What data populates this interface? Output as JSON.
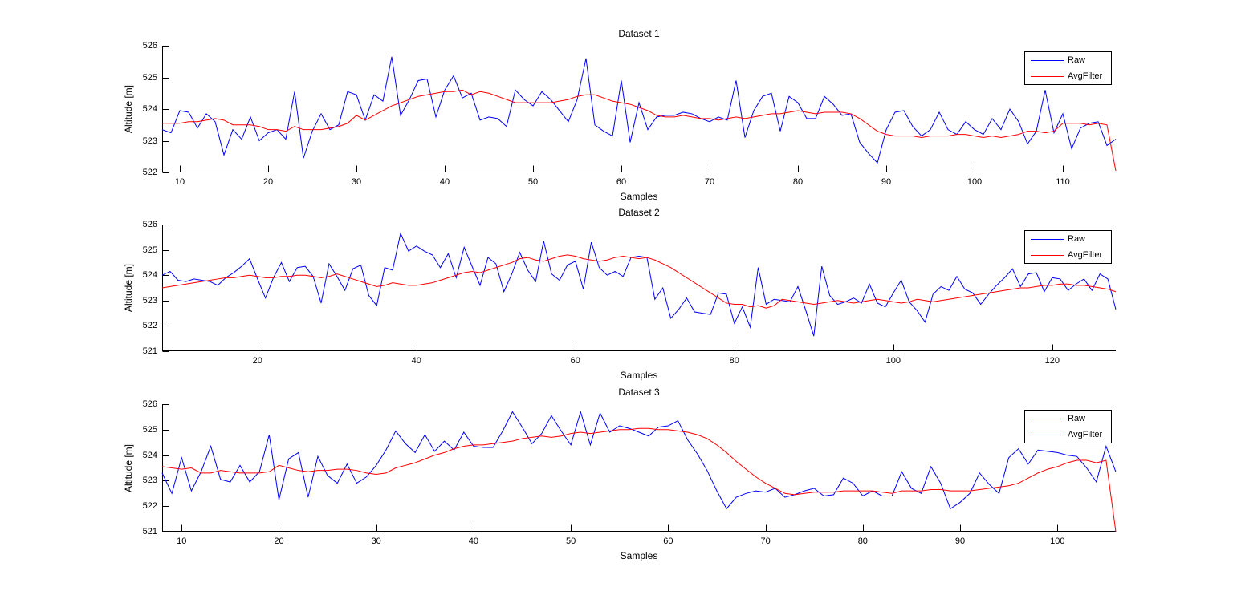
{
  "figure_background": "#ffffff",
  "axis_color": "#000000",
  "chart_data": [
    {
      "type": "line",
      "title": "Dataset 1",
      "xlabel": "Samples",
      "ylabel": "Altitude [m]",
      "xlim": [
        8,
        116
      ],
      "ylim": [
        522,
        526
      ],
      "xticks": [
        10,
        20,
        30,
        40,
        50,
        60,
        70,
        80,
        90,
        100,
        110
      ],
      "yticks": [
        522,
        523,
        524,
        525,
        526
      ],
      "grid": false,
      "legend_position": "top-right",
      "x_start": 8,
      "x_step": 1,
      "series": [
        {
          "name": "Raw",
          "color": "#0000FF",
          "values": [
            523.35,
            523.25,
            523.95,
            523.9,
            523.4,
            523.85,
            523.6,
            522.55,
            523.35,
            523.05,
            523.75,
            523.0,
            523.25,
            523.35,
            523.05,
            524.55,
            522.45,
            523.3,
            523.85,
            523.35,
            523.5,
            524.55,
            524.45,
            523.65,
            524.45,
            524.25,
            525.65,
            523.8,
            524.3,
            524.9,
            524.95,
            523.75,
            524.6,
            525.05,
            524.35,
            524.5,
            523.65,
            523.75,
            523.7,
            523.45,
            524.6,
            524.3,
            524.1,
            524.55,
            524.3,
            523.95,
            523.6,
            524.3,
            525.6,
            523.5,
            523.3,
            523.15,
            524.9,
            522.95,
            524.2,
            523.35,
            523.75,
            523.8,
            523.8,
            523.9,
            523.85,
            523.7,
            523.6,
            523.75,
            523.65,
            524.9,
            523.1,
            523.95,
            524.4,
            524.5,
            523.3,
            524.4,
            524.2,
            523.7,
            523.7,
            524.4,
            524.15,
            523.8,
            523.85,
            522.95,
            522.6,
            522.3,
            523.35,
            523.9,
            523.95,
            523.45,
            523.15,
            523.35,
            523.9,
            523.35,
            523.2,
            523.6,
            523.35,
            523.2,
            523.7,
            523.35,
            524.0,
            523.6,
            522.9,
            523.3,
            524.6,
            523.25,
            523.85,
            522.75,
            523.4,
            523.55,
            523.6,
            522.85,
            523.05
          ]
        },
        {
          "name": "AvgFilter",
          "color": "#FF0000",
          "values": [
            523.55,
            523.55,
            523.55,
            523.6,
            523.6,
            523.65,
            523.7,
            523.65,
            523.5,
            523.5,
            523.5,
            523.45,
            523.35,
            523.35,
            523.3,
            523.45,
            523.35,
            523.35,
            523.35,
            523.4,
            523.45,
            523.55,
            523.8,
            523.65,
            523.8,
            523.95,
            524.1,
            524.2,
            524.3,
            524.4,
            524.45,
            524.5,
            524.55,
            524.55,
            524.6,
            524.45,
            524.55,
            524.5,
            524.4,
            524.3,
            524.2,
            524.2,
            524.2,
            524.2,
            524.2,
            524.25,
            524.3,
            524.4,
            524.45,
            524.45,
            524.35,
            524.25,
            524.2,
            524.15,
            524.05,
            523.95,
            523.8,
            523.75,
            523.75,
            523.8,
            523.75,
            523.7,
            523.7,
            523.65,
            523.7,
            523.75,
            523.7,
            523.75,
            523.8,
            523.85,
            523.85,
            523.9,
            523.95,
            523.9,
            523.85,
            523.9,
            523.9,
            523.9,
            523.85,
            523.7,
            523.5,
            523.3,
            523.2,
            523.15,
            523.15,
            523.15,
            523.1,
            523.15,
            523.15,
            523.15,
            523.2,
            523.2,
            523.15,
            523.1,
            523.15,
            523.1,
            523.15,
            523.2,
            523.3,
            523.3,
            523.25,
            523.3,
            523.55,
            523.55,
            523.55,
            523.5,
            523.55,
            523.5,
            522.05
          ]
        }
      ]
    },
    {
      "type": "line",
      "title": "Dataset 2",
      "xlabel": "Samples",
      "ylabel": "Altitude [m]",
      "xlim": [
        8,
        128
      ],
      "ylim": [
        521,
        526
      ],
      "xticks": [
        20,
        40,
        60,
        80,
        100,
        120
      ],
      "yticks": [
        521,
        522,
        523,
        524,
        525,
        526
      ],
      "grid": false,
      "legend_position": "top-right",
      "x_start": 8,
      "x_step": 1,
      "series": [
        {
          "name": "Raw",
          "color": "#0000FF",
          "values": [
            524.0,
            524.15,
            523.8,
            523.75,
            523.85,
            523.8,
            523.75,
            523.6,
            523.9,
            524.1,
            524.35,
            524.65,
            523.85,
            523.1,
            523.9,
            524.5,
            523.75,
            524.3,
            524.35,
            523.95,
            522.9,
            524.45,
            523.95,
            523.4,
            524.25,
            524.4,
            523.2,
            522.8,
            524.3,
            524.2,
            525.65,
            524.95,
            525.15,
            524.95,
            524.8,
            524.3,
            524.85,
            523.9,
            525.1,
            524.35,
            523.6,
            524.7,
            524.45,
            523.35,
            524.05,
            524.9,
            524.2,
            523.75,
            525.35,
            524.05,
            523.8,
            524.4,
            524.55,
            523.45,
            525.3,
            524.3,
            524.0,
            524.15,
            523.95,
            524.7,
            524.75,
            524.7,
            523.05,
            523.5,
            522.3,
            522.65,
            523.1,
            522.55,
            522.5,
            522.45,
            523.3,
            523.25,
            522.1,
            522.75,
            521.95,
            524.3,
            522.85,
            523.05,
            523.0,
            522.95,
            523.55,
            522.6,
            521.6,
            524.35,
            523.2,
            522.85,
            522.95,
            523.1,
            522.9,
            523.65,
            522.9,
            522.75,
            523.3,
            523.8,
            522.95,
            522.6,
            522.15,
            523.25,
            523.55,
            523.4,
            523.95,
            523.45,
            523.3,
            522.85,
            523.25,
            523.6,
            523.9,
            524.25,
            523.55,
            524.05,
            524.1,
            523.35,
            523.9,
            523.85,
            523.4,
            523.65,
            523.85,
            523.4,
            524.05,
            523.85,
            522.65
          ]
        },
        {
          "name": "AvgFilter",
          "color": "#FF0000",
          "values": [
            523.5,
            523.55,
            523.6,
            523.65,
            523.7,
            523.75,
            523.8,
            523.85,
            523.9,
            523.9,
            523.95,
            524.0,
            523.95,
            523.9,
            523.9,
            523.95,
            523.95,
            524.0,
            524.0,
            523.95,
            523.9,
            523.95,
            524.05,
            523.95,
            523.85,
            523.75,
            523.65,
            523.55,
            523.6,
            523.7,
            523.65,
            523.6,
            523.6,
            523.65,
            523.7,
            523.8,
            523.9,
            524.0,
            524.1,
            524.15,
            524.1,
            524.2,
            524.3,
            524.4,
            524.5,
            524.65,
            524.7,
            524.6,
            524.55,
            524.65,
            524.75,
            524.8,
            524.75,
            524.65,
            524.6,
            524.55,
            524.6,
            524.7,
            524.75,
            524.7,
            524.65,
            524.7,
            524.6,
            524.45,
            524.3,
            524.1,
            523.9,
            523.7,
            523.5,
            523.3,
            523.1,
            522.9,
            522.85,
            522.85,
            522.75,
            522.8,
            522.7,
            522.8,
            523.05,
            523.0,
            522.95,
            522.9,
            522.85,
            522.9,
            522.95,
            523.0,
            522.95,
            522.9,
            522.95,
            523.0,
            523.05,
            523.0,
            522.95,
            522.9,
            522.95,
            523.05,
            523.0,
            522.95,
            523.0,
            523.05,
            523.1,
            523.15,
            523.2,
            523.25,
            523.3,
            523.35,
            523.4,
            523.45,
            523.5,
            523.5,
            523.55,
            523.6,
            523.6,
            523.65,
            523.65,
            523.6,
            523.6,
            523.55,
            523.5,
            523.45,
            523.35
          ]
        }
      ]
    },
    {
      "type": "line",
      "title": "Dataset 3",
      "xlabel": "Samples",
      "ylabel": "Altitude [m]",
      "xlim": [
        8,
        106
      ],
      "ylim": [
        521,
        526
      ],
      "xticks": [
        10,
        20,
        30,
        40,
        50,
        60,
        70,
        80,
        90,
        100
      ],
      "yticks": [
        521,
        522,
        523,
        524,
        525,
        526
      ],
      "grid": false,
      "legend_position": "top-right",
      "x_start": 8,
      "x_step": 1,
      "series": [
        {
          "name": "Raw",
          "color": "#0000FF",
          "values": [
            523.3,
            522.5,
            523.9,
            522.6,
            523.35,
            524.35,
            523.05,
            522.95,
            523.6,
            522.95,
            523.35,
            524.8,
            522.25,
            523.85,
            524.1,
            522.35,
            523.95,
            523.2,
            522.9,
            523.65,
            522.9,
            523.15,
            523.6,
            524.2,
            524.95,
            524.45,
            524.1,
            524.8,
            524.15,
            524.55,
            524.2,
            524.9,
            524.35,
            524.3,
            524.3,
            524.95,
            525.7,
            525.1,
            524.45,
            524.85,
            525.55,
            524.95,
            524.4,
            525.7,
            524.4,
            525.65,
            524.9,
            525.15,
            525.05,
            524.9,
            524.75,
            525.1,
            525.15,
            525.35,
            524.6,
            524.05,
            523.4,
            522.6,
            521.9,
            522.35,
            522.5,
            522.6,
            522.55,
            522.7,
            522.35,
            522.45,
            522.6,
            522.7,
            522.4,
            522.45,
            523.1,
            522.9,
            522.4,
            522.6,
            522.4,
            522.4,
            523.35,
            522.7,
            522.5,
            523.55,
            522.9,
            521.9,
            522.15,
            522.5,
            523.3,
            522.85,
            522.5,
            523.9,
            524.25,
            523.65,
            524.2,
            524.15,
            524.1,
            524.0,
            523.95,
            523.5,
            522.95,
            524.35,
            523.35
          ]
        },
        {
          "name": "AvgFilter",
          "color": "#FF0000",
          "values": [
            523.55,
            523.5,
            523.45,
            523.5,
            523.3,
            523.3,
            523.4,
            523.35,
            523.3,
            523.3,
            523.3,
            523.35,
            523.6,
            523.5,
            523.4,
            523.35,
            523.4,
            523.4,
            523.45,
            523.45,
            523.4,
            523.3,
            523.25,
            523.3,
            523.5,
            523.6,
            523.7,
            523.85,
            524.0,
            524.1,
            524.25,
            524.35,
            524.4,
            524.4,
            524.45,
            524.5,
            524.55,
            524.65,
            524.7,
            524.75,
            524.7,
            524.75,
            524.85,
            524.9,
            524.85,
            524.9,
            524.95,
            525.0,
            525.0,
            525.05,
            525.05,
            525.0,
            525.0,
            524.95,
            524.9,
            524.8,
            524.65,
            524.4,
            524.1,
            523.75,
            523.45,
            523.15,
            522.9,
            522.7,
            522.5,
            522.45,
            522.5,
            522.55,
            522.55,
            522.55,
            522.6,
            522.6,
            522.6,
            522.6,
            522.55,
            522.5,
            522.6,
            522.6,
            522.6,
            522.65,
            522.65,
            522.6,
            522.6,
            522.6,
            522.65,
            522.7,
            522.75,
            522.8,
            522.9,
            523.1,
            523.3,
            523.45,
            523.55,
            523.7,
            523.8,
            523.8,
            523.7,
            523.8,
            521.0
          ]
        }
      ]
    }
  ]
}
